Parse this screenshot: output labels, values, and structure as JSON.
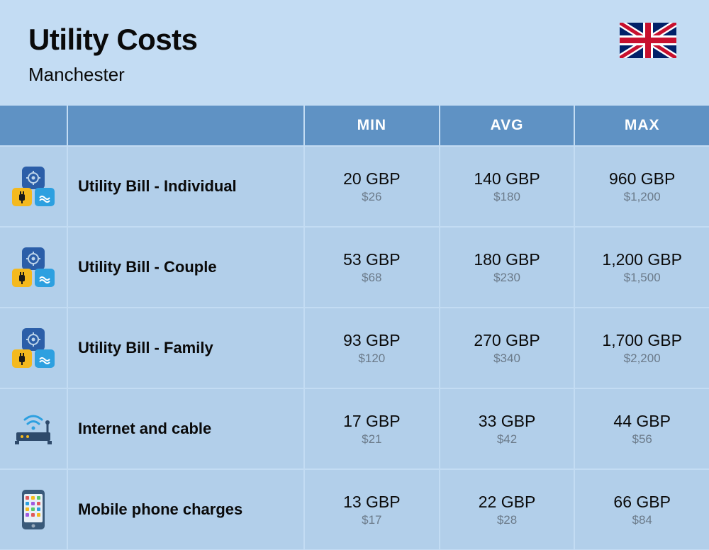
{
  "header": {
    "title": "Utility Costs",
    "subtitle": "Manchester",
    "flag_country": "United Kingdom"
  },
  "table": {
    "columns": [
      "MIN",
      "AVG",
      "MAX"
    ],
    "header_bg": "#5f92c4",
    "header_text_color": "#ffffff",
    "cell_bg": "#b2cfea",
    "page_bg": "#c3dcf3",
    "gbp_color": "#0a0a0a",
    "usd_color": "#6b7a89",
    "rows": [
      {
        "icon": "utility-cluster",
        "label": "Utility Bill - Individual",
        "min": {
          "gbp": "20 GBP",
          "usd": "$26"
        },
        "avg": {
          "gbp": "140 GBP",
          "usd": "$180"
        },
        "max": {
          "gbp": "960 GBP",
          "usd": "$1,200"
        }
      },
      {
        "icon": "utility-cluster",
        "label": "Utility Bill - Couple",
        "min": {
          "gbp": "53 GBP",
          "usd": "$68"
        },
        "avg": {
          "gbp": "180 GBP",
          "usd": "$230"
        },
        "max": {
          "gbp": "1,200 GBP",
          "usd": "$1,500"
        }
      },
      {
        "icon": "utility-cluster",
        "label": "Utility Bill - Family",
        "min": {
          "gbp": "93 GBP",
          "usd": "$120"
        },
        "avg": {
          "gbp": "270 GBP",
          "usd": "$340"
        },
        "max": {
          "gbp": "1,700 GBP",
          "usd": "$2,200"
        }
      },
      {
        "icon": "router",
        "label": "Internet and cable",
        "min": {
          "gbp": "17 GBP",
          "usd": "$21"
        },
        "avg": {
          "gbp": "33 GBP",
          "usd": "$42"
        },
        "max": {
          "gbp": "44 GBP",
          "usd": "$56"
        }
      },
      {
        "icon": "phone",
        "label": "Mobile phone charges",
        "min": {
          "gbp": "13 GBP",
          "usd": "$17"
        },
        "avg": {
          "gbp": "22 GBP",
          "usd": "$28"
        },
        "max": {
          "gbp": "66 GBP",
          "usd": "$84"
        }
      }
    ]
  },
  "icon_colors": {
    "gear_bg": "#2b5ea8",
    "plug_bg": "#f4b91e",
    "water_bg": "#2da0e0",
    "router_body": "#2e4a6b",
    "router_wave": "#2da0e0",
    "phone_body": "#3a5a7a",
    "phone_screen": "#e8f0f7"
  }
}
